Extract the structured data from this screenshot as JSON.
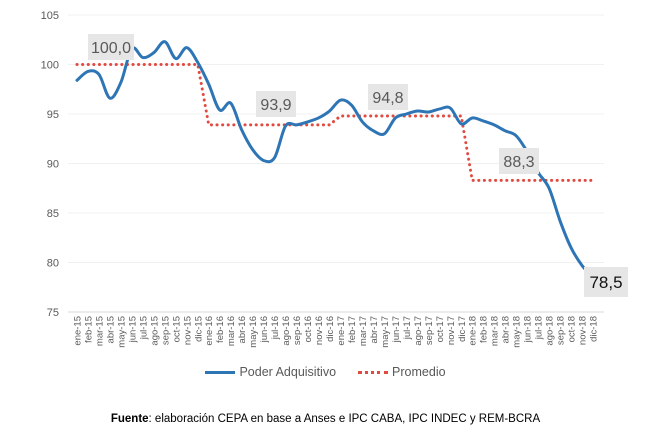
{
  "chart_data": {
    "type": "line",
    "title": "",
    "xlabel": "",
    "ylabel": "",
    "ylim": [
      75,
      105
    ],
    "yticks": [
      75,
      80,
      85,
      90,
      95,
      100,
      105
    ],
    "grid": true,
    "legend_position": "bottom",
    "categories": [
      "ene-15",
      "feb-15",
      "mar-15",
      "abr-15",
      "may-15",
      "jun-15",
      "jul-15",
      "ago-15",
      "sep-15",
      "oct-15",
      "nov-15",
      "dic-15",
      "ene-16",
      "feb-16",
      "mar-16",
      "abr-16",
      "may-16",
      "jun-16",
      "jul-16",
      "ago-16",
      "sep-16",
      "oct-16",
      "nov-16",
      "dic-16",
      "ene-17",
      "feb-17",
      "mar-17",
      "abr-17",
      "may-17",
      "jun-17",
      "jul-17",
      "ago-17",
      "sep-17",
      "oct-17",
      "nov-17",
      "dic-17",
      "ene-18",
      "feb-18",
      "mar-18",
      "abr-18",
      "may-18",
      "jun-18",
      "jul-18",
      "ago-18",
      "sep-18",
      "oct-18",
      "nov-18",
      "dic-18"
    ],
    "series": [
      {
        "name": "Poder Adquisitivo",
        "color": "#2e75b6",
        "style": "solid",
        "values": [
          98.4,
          99.3,
          99.0,
          96.6,
          98.2,
          101.6,
          100.7,
          101.2,
          102.3,
          100.6,
          101.7,
          100.2,
          98.0,
          95.4,
          96.1,
          93.4,
          91.4,
          90.3,
          90.6,
          93.8,
          93.9,
          94.2,
          94.6,
          95.3,
          96.4,
          95.9,
          94.2,
          93.3,
          93.0,
          94.6,
          95.0,
          95.3,
          95.2,
          95.5,
          95.6,
          94.0,
          94.6,
          94.3,
          93.9,
          93.3,
          92.8,
          91.2,
          89.1,
          87.5,
          84.2,
          81.5,
          79.7,
          78.5
        ]
      },
      {
        "name": "Promedio",
        "color": "#e04a3f",
        "style": "dotted",
        "values": [
          100.0,
          100.0,
          100.0,
          100.0,
          100.0,
          100.0,
          100.0,
          100.0,
          100.0,
          100.0,
          100.0,
          100.0,
          93.9,
          93.9,
          93.9,
          93.9,
          93.9,
          93.9,
          93.9,
          93.9,
          93.9,
          93.9,
          93.9,
          93.9,
          94.8,
          94.8,
          94.8,
          94.8,
          94.8,
          94.8,
          94.8,
          94.8,
          94.8,
          94.8,
          94.8,
          94.8,
          88.3,
          88.3,
          88.3,
          88.3,
          88.3,
          88.3,
          88.3,
          88.3,
          88.3,
          88.3,
          88.3,
          88.3
        ]
      }
    ],
    "annotations": [
      {
        "text": "100,0",
        "at": "jun-15",
        "value": 100.0,
        "emphasis": false
      },
      {
        "text": "93,9",
        "at": "ago-16",
        "value": 93.9,
        "emphasis": false
      },
      {
        "text": "94,8",
        "at": "jul-17",
        "value": 94.8,
        "emphasis": false
      },
      {
        "text": "88,3",
        "at": "jun-18",
        "value": 88.3,
        "emphasis": false
      },
      {
        "text": "78,5",
        "at": "dic-18",
        "value": 78.5,
        "emphasis": true
      }
    ]
  },
  "legend": {
    "items": [
      {
        "label": "Poder Adquisitivo"
      },
      {
        "label": "Promedio"
      }
    ]
  },
  "footer": {
    "bold": "Fuente",
    "text": ": elaboración CEPA en base a Anses e IPC CABA, IPC INDEC y REM-BCRA"
  }
}
